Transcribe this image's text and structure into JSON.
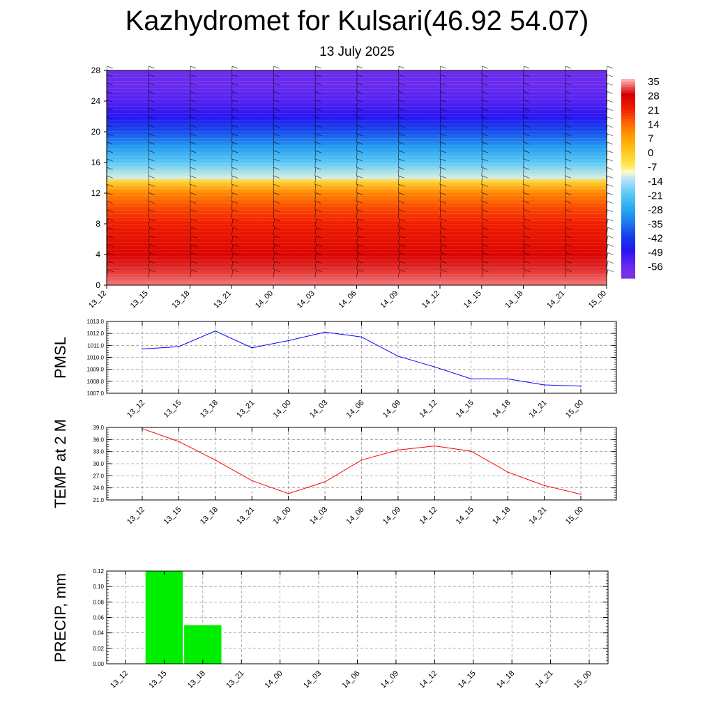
{
  "title": "Kazhydromet for Kulsari(46.92 54.07)",
  "subtitle": "13 July 2025",
  "chart_data": [
    {
      "type": "heatmap",
      "x_ticks": [
        "13_12",
        "13_15",
        "13_18",
        "13_21",
        "14_00",
        "14_03",
        "14_06",
        "14_09",
        "14_12",
        "14_15",
        "14_18",
        "14_21",
        "15_00"
      ],
      "y_ticks": [
        0,
        4,
        8,
        12,
        16,
        20,
        24,
        28
      ],
      "ylim": [
        0,
        28
      ],
      "colorbar_labels": [
        "35",
        "28",
        "21",
        "14",
        "7",
        "0",
        "-7",
        "-14",
        "-21",
        "-28",
        "-35",
        "-42",
        "-49",
        "-56"
      ],
      "temperature_profile": {
        "levels": [
          0,
          2,
          4,
          6,
          8,
          10,
          12,
          13.5,
          14,
          16,
          18,
          20,
          22,
          24,
          26,
          28
        ],
        "values": [
          33,
          30,
          27,
          24,
          21,
          17,
          10,
          -2,
          -12,
          -21,
          -30,
          -40,
          -49,
          -54,
          -57,
          -57
        ]
      },
      "wind_barbs": true
    },
    {
      "type": "line",
      "ylabel": "PMSL",
      "x": [
        "13_12",
        "13_15",
        "13_18",
        "13_21",
        "14_00",
        "14_03",
        "14_06",
        "14_09",
        "14_12",
        "14_15",
        "14_18",
        "14_21",
        "15_00"
      ],
      "values": [
        1010.7,
        1010.9,
        1012.2,
        1010.8,
        1011.4,
        1012.1,
        1011.7,
        1010.1,
        1009.2,
        1008.2,
        1008.2,
        1007.7,
        1007.6
      ],
      "y_ticks": [
        "1007.0",
        "1008.0",
        "1009.0",
        "1010.0",
        "1011.0",
        "1012.0",
        "1013.0"
      ],
      "ylim": [
        1007,
        1013
      ],
      "color": "#0000ff",
      "grid": true
    },
    {
      "type": "line",
      "ylabel": "TEMP at 2 M",
      "x": [
        "13_12",
        "13_15",
        "13_18",
        "13_21",
        "14_00",
        "14_03",
        "14_06",
        "14_09",
        "14_12",
        "14_15",
        "14_18",
        "14_21",
        "15_00"
      ],
      "values": [
        38.7,
        35.5,
        30.9,
        25.8,
        22.6,
        25.5,
        30.9,
        33.4,
        34.4,
        33.1,
        27.9,
        24.6,
        22.4
      ],
      "y_ticks": [
        "21.0",
        "24.0",
        "27.0",
        "30.0",
        "33.0",
        "36.0",
        "39.0"
      ],
      "ylim": [
        21,
        39
      ],
      "color": "#ff0000",
      "grid": true
    },
    {
      "type": "bar",
      "ylabel": "PRECIP, mm",
      "x": [
        "13_12",
        "13_15",
        "13_18",
        "13_21",
        "14_00",
        "14_03",
        "14_06",
        "14_09",
        "14_12",
        "14_15",
        "14_18",
        "14_21",
        "15_00"
      ],
      "values": [
        0,
        0.12,
        0.05,
        0,
        0,
        0,
        0,
        0,
        0,
        0,
        0,
        0,
        0
      ],
      "y_ticks": [
        "0.00",
        "0.02",
        "0.04",
        "0.06",
        "0.08",
        "0.10",
        "0.12"
      ],
      "ylim": [
        0,
        0.12
      ],
      "color": "#00ee00",
      "grid": true
    }
  ]
}
